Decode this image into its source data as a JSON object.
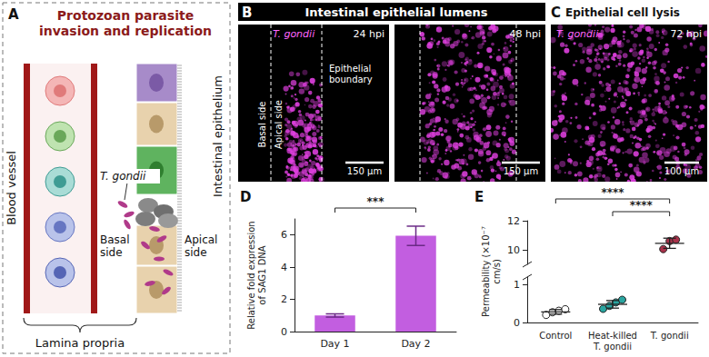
{
  "panels": {
    "A": {
      "letter": "A",
      "title": "Protozoan parasite invasion and replication",
      "labels": {
        "blood_vessel": "Blood vessel",
        "parasite": "T. gondii",
        "basal": "Basal side",
        "apical": "Apical side",
        "epithelium": "Intestinal epithelium",
        "lamina_propria": "Lamina propria"
      }
    },
    "B": {
      "letter": "B",
      "title": "Intestinal epithelial lumens",
      "images": [
        {
          "organism": "T. gondii",
          "time": "24 hpi",
          "basal": "Basal side",
          "apical": "Apical side",
          "boundary": "Epithelial boundary",
          "scale_bar": "150 µm"
        },
        {
          "time": "48 hpi",
          "scale_bar": "150 µm"
        }
      ]
    },
    "C": {
      "letter": "C",
      "title": "Epithelial cell lysis",
      "organism": "T. gondii",
      "time": "72 hpi",
      "scale_bar": "100 µm"
    }
  },
  "chart_data": [
    {
      "letter": "D",
      "type": "bar",
      "categories": [
        "Day 1",
        "Day 2"
      ],
      "values": [
        1.0,
        5.95
      ],
      "errors": [
        0.1,
        0.6
      ],
      "color": "#c25ee0",
      "ylabel": "Relative fold expression of SAG1 DNA",
      "ylim": [
        0,
        7
      ],
      "yticks": [
        0,
        2,
        4,
        6
      ],
      "significance": [
        {
          "pair": [
            "Day 1",
            "Day 2"
          ],
          "label": "***"
        }
      ]
    },
    {
      "letter": "E",
      "type": "scatter",
      "categories": [
        "Control",
        "Heat-killed T. gondii",
        "T. gondii"
      ],
      "values": [
        [
          0.2,
          0.27,
          0.31,
          0.35
        ],
        [
          0.36,
          0.44,
          0.53,
          0.6
        ],
        [
          10.05,
          10.6,
          10.7
        ]
      ],
      "colors": [
        "#ffffff",
        "#2aa5a0",
        "#a8324a"
      ],
      "means": [
        0.28,
        0.48,
        10.45
      ],
      "sd": [
        0.06,
        0.1,
        0.35
      ],
      "ylabel": "Permeability (×10⁻⁷ cm/s)",
      "y_segments": [
        {
          "ylim": [
            0,
            1.2
          ],
          "yticks": [
            0,
            1
          ]
        },
        {
          "ylim": [
            9,
            12
          ],
          "yticks": [
            10,
            12
          ]
        }
      ],
      "significance": [
        {
          "pair": [
            "Control",
            "T. gondii"
          ],
          "label": "****"
        },
        {
          "pair": [
            "Heat-killed T. gondii",
            "T. gondii"
          ],
          "label": "****"
        }
      ]
    }
  ]
}
